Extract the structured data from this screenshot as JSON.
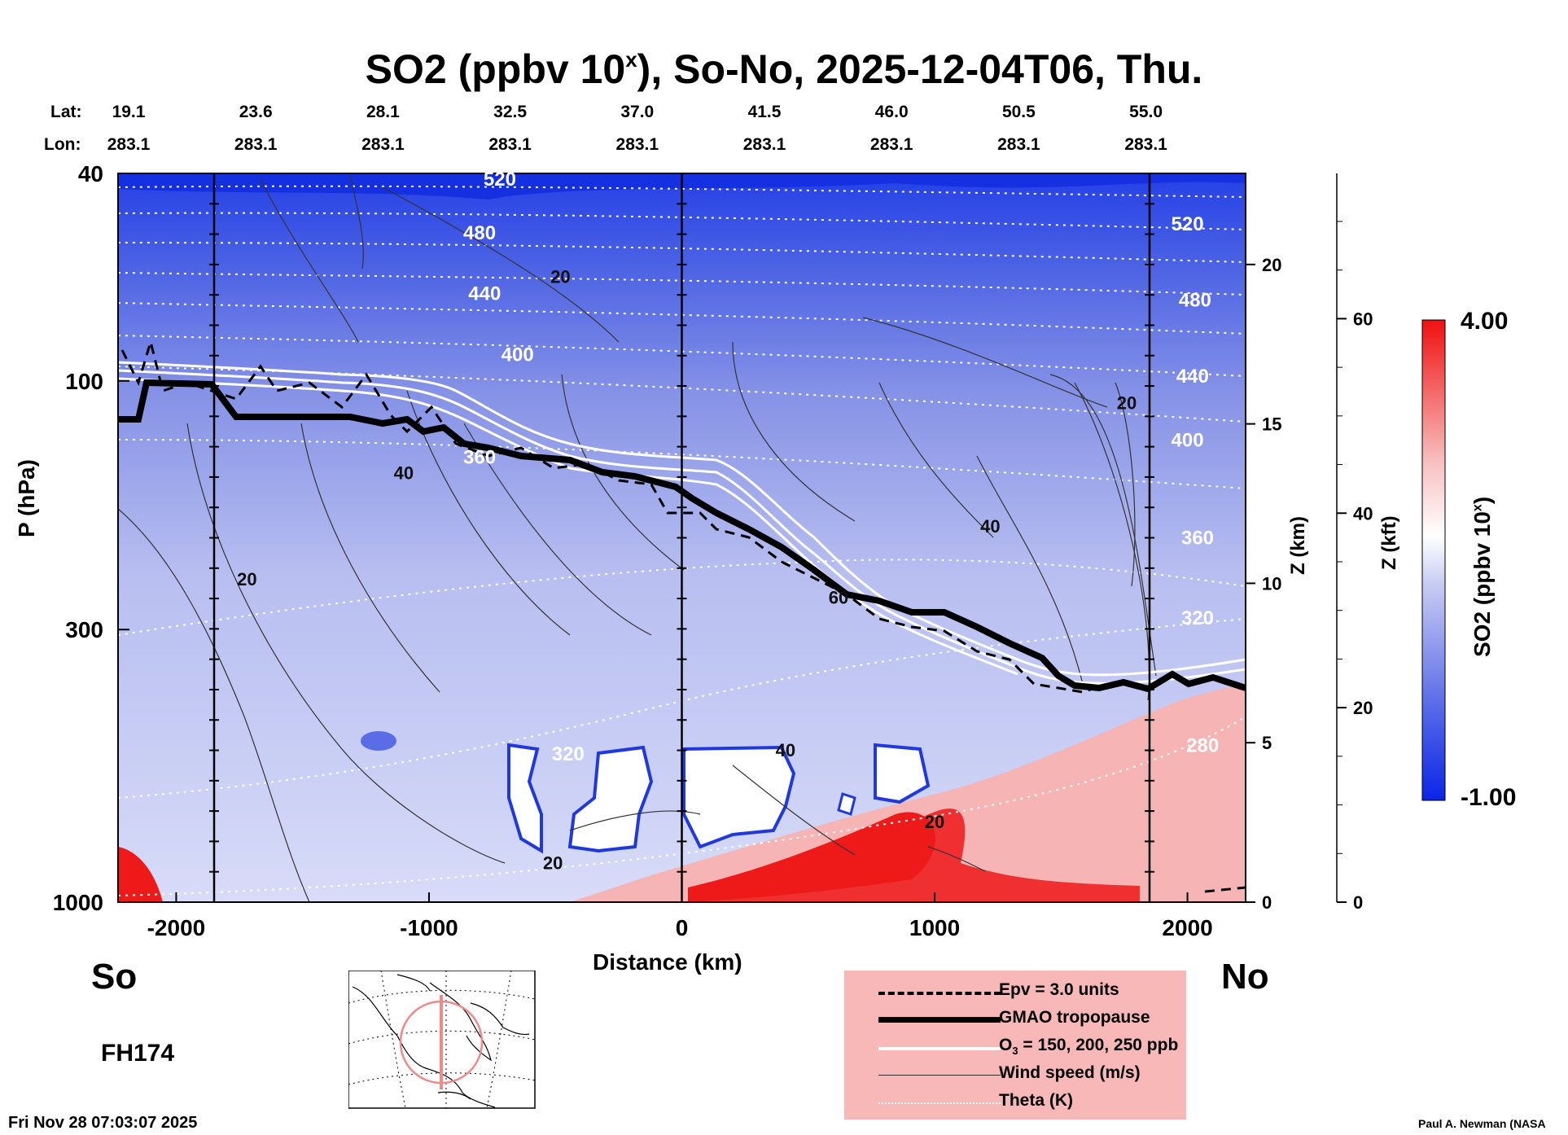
{
  "title": {
    "main": "SO2 (ppbv 10",
    "sup": "x",
    "rest": "), So-No, 2025-12-04T06, Thu."
  },
  "lat_label": "Lat:",
  "lon_label": "Lon:",
  "lats": [
    "19.1",
    "23.6",
    "28.1",
    "32.5",
    "37.0",
    "41.5",
    "46.0",
    "50.5",
    "55.0"
  ],
  "lons": [
    "283.1",
    "283.1",
    "283.1",
    "283.1",
    "283.1",
    "283.1",
    "283.1",
    "283.1",
    "283.1"
  ],
  "left_end": "So",
  "right_end": "No",
  "forecast_hour": "FH174",
  "timestamp": "Fri Nov 28 07:03:07 2025",
  "credit": "Paul A. Newman (NASA",
  "colorbar": {
    "max_label": "4.00",
    "min_label": "-1.00",
    "label_main": "SO2 (ppbv 10",
    "label_sup": "x",
    "label_end": ")"
  },
  "legend": [
    {
      "label": "Epv = 3.0 units"
    },
    {
      "label": "GMAO tropopause"
    },
    {
      "label_main": "O",
      "label_sub": "3",
      "label_rest": " = 150, 200, 250 ppb"
    },
    {
      "label": "Wind speed (m/s)"
    },
    {
      "label": "Theta (K)"
    }
  ],
  "chart_data": {
    "type": "heatmap",
    "title": "SO2 (ppbv 10^x), So-No, 2025-12-04T06, Thu.",
    "xlabel": "Distance (km)",
    "ylabel": "P (hPa)",
    "y2label": "Z (km)",
    "y3label": "Z (kft)",
    "xlim": [
      -2230,
      2230
    ],
    "ylim": [
      1000,
      40
    ],
    "yscale": "log",
    "x_ticks": [
      -2000,
      -1000,
      0,
      1000,
      2000
    ],
    "x_tick_labels": [
      "-2000",
      "-1000",
      "0",
      "1000",
      "2000"
    ],
    "y_ticks": [
      40,
      100,
      300,
      1000
    ],
    "y_tick_labels": [
      "40",
      "100",
      "300",
      "1000"
    ],
    "z_km_ticks": [
      0,
      5,
      10,
      15,
      20
    ],
    "z_km_tick_labels": [
      "0",
      "5",
      "10",
      "15",
      "20"
    ],
    "z_kft_ticks": [
      0,
      20,
      40,
      60
    ],
    "z_kft_tick_labels": [
      "0",
      "20",
      "40",
      "60"
    ],
    "vertical_lines_km": [
      -1850,
      0,
      1850
    ],
    "colorbar_range": [
      -1.0,
      4.0
    ],
    "colors": {
      "low": "#0a24e6",
      "mid": "#ffffff",
      "high": "#f01010"
    },
    "theta_labels": [
      {
        "text": "520",
        "x": -720,
        "p": 41
      },
      {
        "text": "480",
        "x": -800,
        "p": 52
      },
      {
        "text": "440",
        "x": -780,
        "p": 68
      },
      {
        "text": "400",
        "x": -650,
        "p": 89
      },
      {
        "text": "360",
        "x": -800,
        "p": 140
      },
      {
        "text": "320",
        "x": -450,
        "p": 520
      },
      {
        "text": "520",
        "x": 2000,
        "p": 50
      },
      {
        "text": "480",
        "x": 2030,
        "p": 70
      },
      {
        "text": "440",
        "x": 2020,
        "p": 98
      },
      {
        "text": "400",
        "x": 2000,
        "p": 130
      },
      {
        "text": "360",
        "x": 2040,
        "p": 200
      },
      {
        "text": "320",
        "x": 2040,
        "p": 285
      },
      {
        "text": "280",
        "x": 2060,
        "p": 500
      }
    ],
    "wind_labels": [
      {
        "text": "20",
        "x": -480,
        "p": 63
      },
      {
        "text": "20",
        "x": -1720,
        "p": 240
      },
      {
        "text": "20",
        "x": 1760,
        "p": 110
      },
      {
        "text": "40",
        "x": 1220,
        "p": 190
      },
      {
        "text": "60",
        "x": 620,
        "p": 260
      },
      {
        "text": "40",
        "x": 410,
        "p": 510
      },
      {
        "text": "20",
        "x": 1000,
        "p": 700
      },
      {
        "text": "20",
        "x": -510,
        "p": 840
      },
      {
        "text": "40",
        "x": -1100,
        "p": 150
      }
    ]
  }
}
